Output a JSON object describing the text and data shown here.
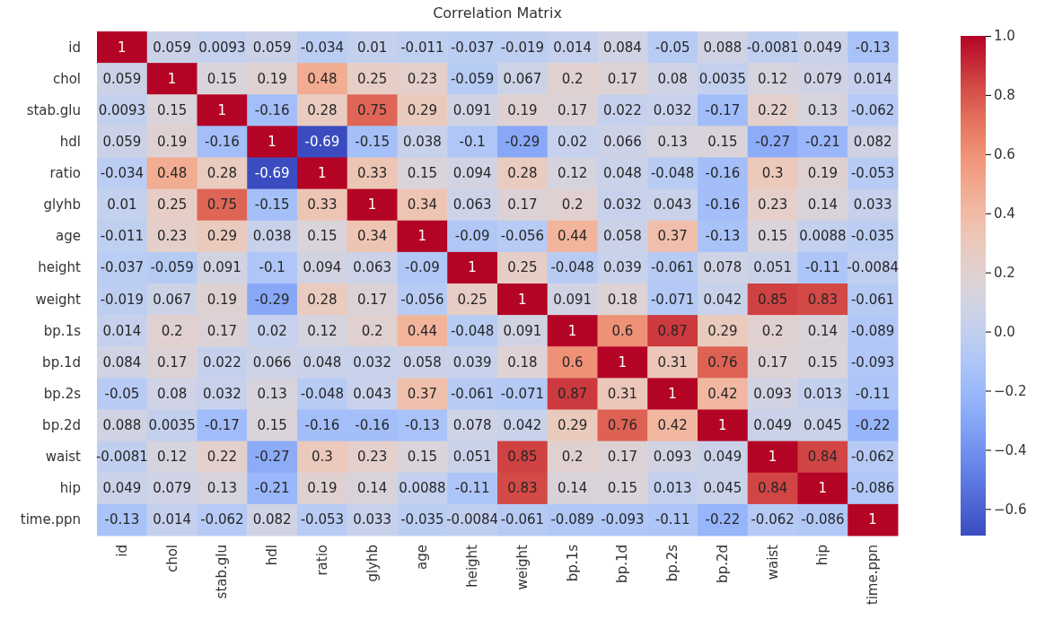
{
  "chart_data": {
    "type": "heatmap",
    "title": "Correlation Matrix",
    "categories": [
      "id",
      "chol",
      "stab.glu",
      "hdl",
      "ratio",
      "glyhb",
      "age",
      "height",
      "weight",
      "bp.1s",
      "bp.1d",
      "bp.2s",
      "bp.2d",
      "waist",
      "hip",
      "time.ppn"
    ],
    "y_categories": [
      "id",
      "chol",
      "stab.glu",
      "hdl",
      "ratio",
      "glyhb",
      "age",
      "height",
      "weight",
      "bp.1s",
      "bp.1d",
      "bp.2s",
      "bp.2d",
      "waist",
      "hip",
      "time.ppn"
    ],
    "cells": [
      [
        1,
        0.059,
        0.0093,
        0.059,
        -0.034,
        0.01,
        -0.011,
        -0.037,
        -0.019,
        0.014,
        0.084,
        -0.05,
        0.088,
        -0.0081,
        0.049,
        -0.13
      ],
      [
        0.059,
        1,
        0.15,
        0.19,
        0.48,
        0.25,
        0.23,
        -0.059,
        0.067,
        0.2,
        0.17,
        0.08,
        0.0035,
        0.12,
        0.079,
        0.014
      ],
      [
        0.0093,
        0.15,
        1,
        -0.16,
        0.28,
        0.75,
        0.29,
        0.091,
        0.19,
        0.17,
        0.022,
        0.032,
        -0.17,
        0.22,
        0.13,
        -0.062
      ],
      [
        0.059,
        0.19,
        -0.16,
        1,
        -0.69,
        -0.15,
        0.038,
        -0.1,
        -0.29,
        0.02,
        0.066,
        0.13,
        0.15,
        -0.27,
        -0.21,
        0.082
      ],
      [
        -0.034,
        0.48,
        0.28,
        -0.69,
        1,
        0.33,
        0.15,
        0.094,
        0.28,
        0.12,
        0.048,
        -0.048,
        -0.16,
        0.3,
        0.19,
        -0.053
      ],
      [
        0.01,
        0.25,
        0.75,
        -0.15,
        0.33,
        1,
        0.34,
        0.063,
        0.17,
        0.2,
        0.032,
        0.043,
        -0.16,
        0.23,
        0.14,
        0.033
      ],
      [
        -0.011,
        0.23,
        0.29,
        0.038,
        0.15,
        0.34,
        1,
        -0.09,
        -0.056,
        0.44,
        0.058,
        0.37,
        -0.13,
        0.15,
        0.0088,
        -0.035
      ],
      [
        -0.037,
        -0.059,
        0.091,
        -0.1,
        0.094,
        0.063,
        -0.09,
        1,
        0.25,
        -0.048,
        0.039,
        -0.061,
        0.078,
        0.051,
        -0.11,
        -0.0084
      ],
      [
        -0.019,
        0.067,
        0.19,
        -0.29,
        0.28,
        0.17,
        -0.056,
        0.25,
        1,
        0.091,
        0.18,
        -0.071,
        0.042,
        0.85,
        0.83,
        -0.061
      ],
      [
        0.014,
        0.2,
        0.17,
        0.02,
        0.12,
        0.2,
        0.44,
        -0.048,
        0.091,
        1,
        0.6,
        0.87,
        0.29,
        0.2,
        0.14,
        -0.089
      ],
      [
        0.084,
        0.17,
        0.022,
        0.066,
        0.048,
        0.032,
        0.058,
        0.039,
        0.18,
        0.6,
        1,
        0.31,
        0.76,
        0.17,
        0.15,
        -0.093
      ],
      [
        -0.05,
        0.08,
        0.032,
        0.13,
        -0.048,
        0.043,
        0.37,
        -0.061,
        -0.071,
        0.87,
        0.31,
        1,
        0.42,
        0.093,
        0.013,
        -0.11
      ],
      [
        0.088,
        0.0035,
        -0.17,
        0.15,
        -0.16,
        -0.16,
        -0.13,
        0.078,
        0.042,
        0.29,
        0.76,
        0.42,
        1,
        0.049,
        0.045,
        -0.22
      ],
      [
        -0.0081,
        0.12,
        0.22,
        -0.27,
        0.3,
        0.23,
        0.15,
        0.051,
        0.85,
        0.2,
        0.17,
        0.093,
        0.049,
        1,
        0.84,
        -0.062
      ],
      [
        0.049,
        0.079,
        0.13,
        -0.21,
        0.19,
        0.14,
        0.0088,
        -0.11,
        0.83,
        0.14,
        0.15,
        0.013,
        0.045,
        0.84,
        1,
        -0.086
      ],
      [
        -0.13,
        0.014,
        -0.062,
        0.082,
        -0.053,
        0.033,
        -0.035,
        -0.0084,
        -0.061,
        -0.089,
        -0.093,
        -0.11,
        -0.22,
        -0.062,
        -0.086,
        1
      ]
    ],
    "data_labels": true,
    "clim": [
      -0.69,
      1
    ],
    "cticks": [
      {
        "value": -0.6,
        "label": "−0.6"
      },
      {
        "value": -0.4,
        "label": "−0.4"
      },
      {
        "value": -0.2,
        "label": "−0.2"
      },
      {
        "value": 0,
        "label": "0.0"
      },
      {
        "value": 0.2,
        "label": "0.2"
      },
      {
        "value": 0.4,
        "label": "0.4"
      },
      {
        "value": 0.6,
        "label": "0.6"
      },
      {
        "value": 0.8,
        "label": "0.8"
      },
      {
        "value": 1,
        "label": "1.0"
      }
    ]
  }
}
